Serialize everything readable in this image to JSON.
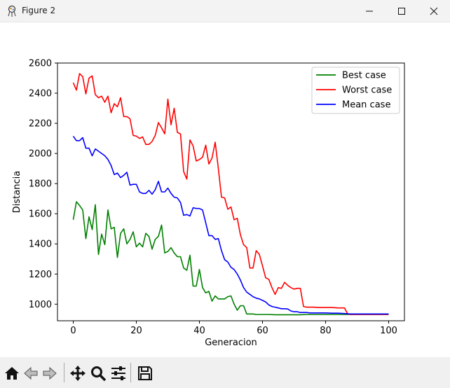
{
  "window": {
    "title": "Figure 2",
    "icon": "figure-app-icon",
    "controls": [
      "minimize-icon",
      "maximize-icon",
      "close-icon"
    ]
  },
  "toolbar": {
    "buttons": [
      "home-icon",
      "back-arrow-icon",
      "forward-arrow-icon",
      "pan-move-icon",
      "zoom-magnifier-icon",
      "configure-subplots-icon",
      "save-disk-icon"
    ]
  },
  "chart_data": {
    "type": "line",
    "title": "",
    "xlabel": "Generacion",
    "ylabel": "Distancia",
    "xlim": [
      -5,
      105
    ],
    "ylim": [
      890,
      2600
    ],
    "xticks": [
      0,
      20,
      40,
      60,
      80,
      100
    ],
    "yticks": [
      1000,
      1200,
      1400,
      1600,
      1800,
      2000,
      2200,
      2400,
      2600
    ],
    "grid": false,
    "legend_position": "top-right",
    "series": [
      {
        "name": "Best case",
        "color": "#008000",
        "x": [
          0,
          1,
          2,
          3,
          4,
          5,
          6,
          7,
          8,
          9,
          10,
          11,
          12,
          13,
          14,
          15,
          16,
          17,
          18,
          19,
          20,
          21,
          22,
          23,
          24,
          25,
          26,
          27,
          28,
          29,
          30,
          31,
          32,
          33,
          34,
          35,
          36,
          37,
          38,
          39,
          40,
          41,
          42,
          43,
          44,
          45,
          46,
          47,
          48,
          49,
          50,
          51,
          52,
          53,
          54,
          55,
          56,
          57,
          58,
          59,
          60,
          62,
          64,
          66,
          68,
          70,
          72,
          74,
          76,
          78,
          80,
          82,
          84,
          86,
          88,
          90,
          92,
          94,
          96,
          98,
          100
        ],
        "y": [
          1560,
          1680,
          1655,
          1625,
          1435,
          1580,
          1495,
          1660,
          1330,
          1465,
          1395,
          1625,
          1500,
          1510,
          1310,
          1470,
          1500,
          1400,
          1430,
          1480,
          1380,
          1405,
          1380,
          1470,
          1450,
          1365,
          1430,
          1450,
          1525,
          1340,
          1350,
          1375,
          1340,
          1315,
          1315,
          1240,
          1225,
          1325,
          1120,
          1120,
          1230,
          1110,
          1075,
          1085,
          1020,
          1055,
          1035,
          1035,
          1035,
          1050,
          1055,
          1000,
          960,
          990,
          990,
          935,
          935,
          935,
          932,
          932,
          932,
          932,
          930,
          930,
          930,
          930,
          930,
          932,
          932,
          932,
          932,
          932,
          932,
          932,
          932,
          932,
          932,
          932,
          932,
          932,
          932
        ]
      },
      {
        "name": "Worst case",
        "color": "#ff0000",
        "x": [
          0,
          1,
          2,
          3,
          4,
          5,
          6,
          7,
          8,
          9,
          10,
          11,
          12,
          13,
          14,
          15,
          16,
          17,
          18,
          19,
          20,
          21,
          22,
          23,
          24,
          25,
          26,
          27,
          28,
          29,
          30,
          31,
          32,
          33,
          34,
          35,
          36,
          37,
          38,
          39,
          40,
          41,
          42,
          43,
          44,
          45,
          46,
          47,
          48,
          49,
          50,
          51,
          52,
          53,
          54,
          55,
          56,
          57,
          58,
          59,
          60,
          61,
          62,
          63,
          64,
          65,
          66,
          67,
          68,
          69,
          70,
          71,
          72,
          73,
          74,
          76,
          78,
          80,
          82,
          84,
          86,
          87,
          88,
          90,
          92,
          94,
          96,
          98,
          100
        ],
        "y": [
          2470,
          2420,
          2530,
          2510,
          2395,
          2500,
          2515,
          2390,
          2370,
          2380,
          2340,
          2380,
          2270,
          2330,
          2310,
          2370,
          2245,
          2245,
          2230,
          2120,
          2115,
          2100,
          2110,
          2060,
          2060,
          2080,
          2120,
          2205,
          2170,
          2130,
          2360,
          2190,
          2300,
          2140,
          2130,
          1880,
          1830,
          2090,
          2050,
          1950,
          1960,
          1975,
          2055,
          1930,
          1970,
          2075,
          1900,
          1710,
          1705,
          1630,
          1645,
          1560,
          1570,
          1460,
          1395,
          1375,
          1240,
          1240,
          1355,
          1330,
          1255,
          1175,
          1165,
          1110,
          1065,
          1110,
          1105,
          1145,
          1125,
          1110,
          1100,
          1105,
          1105,
          985,
          980,
          980,
          978,
          978,
          978,
          975,
          975,
          935,
          932,
          932,
          932,
          932,
          932,
          932,
          932
        ]
      },
      {
        "name": "Mean case",
        "color": "#0000ff",
        "x": [
          0,
          1,
          2,
          3,
          4,
          5,
          6,
          7,
          8,
          9,
          10,
          11,
          12,
          13,
          14,
          15,
          16,
          17,
          18,
          19,
          20,
          21,
          22,
          23,
          24,
          25,
          26,
          27,
          28,
          29,
          30,
          31,
          32,
          33,
          34,
          35,
          36,
          37,
          38,
          39,
          40,
          41,
          42,
          43,
          44,
          45,
          46,
          47,
          48,
          49,
          50,
          51,
          52,
          53,
          54,
          55,
          56,
          57,
          58,
          59,
          60,
          61,
          62,
          63,
          64,
          65,
          66,
          67,
          68,
          69,
          70,
          71,
          72,
          73,
          74,
          75,
          76,
          78,
          80,
          82,
          84,
          86,
          88,
          90,
          92,
          94,
          96,
          98,
          100
        ],
        "y": [
          2115,
          2085,
          2085,
          2105,
          2035,
          2035,
          1985,
          2030,
          2015,
          2000,
          1985,
          1960,
          1920,
          1860,
          1870,
          1840,
          1855,
          1875,
          1790,
          1795,
          1795,
          1745,
          1735,
          1735,
          1755,
          1730,
          1760,
          1815,
          1745,
          1745,
          1770,
          1735,
          1710,
          1705,
          1675,
          1590,
          1595,
          1585,
          1640,
          1635,
          1635,
          1625,
          1540,
          1455,
          1455,
          1430,
          1435,
          1355,
          1295,
          1280,
          1245,
          1230,
          1200,
          1160,
          1110,
          1080,
          1065,
          1050,
          1040,
          1035,
          1025,
          1015,
          995,
          985,
          980,
          975,
          970,
          970,
          968,
          955,
          950,
          950,
          945,
          945,
          945,
          942,
          942,
          942,
          942,
          940,
          940,
          938,
          935,
          935,
          935,
          935,
          935,
          935,
          935
        ]
      }
    ]
  }
}
